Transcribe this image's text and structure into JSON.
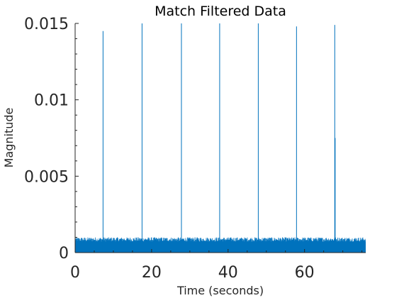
{
  "chart_data": {
    "type": "line",
    "title": "Match Filtered Data",
    "xlabel": "Time (seconds)",
    "ylabel": "Magnitude",
    "xlim": [
      0,
      76
    ],
    "ylim": [
      0,
      0.015
    ],
    "x_ticks": [
      0,
      20,
      40,
      60
    ],
    "x_tick_labels": [
      "0",
      "20",
      "40",
      "60"
    ],
    "y_ticks": [
      0,
      0.005,
      0.01,
      0.015
    ],
    "y_tick_labels": [
      "0",
      "0.005",
      "0.01",
      "0.015"
    ],
    "grid": false,
    "series": [
      {
        "name": "",
        "color": "#0072BD",
        "noise_floor": 0.001,
        "peaks": [
          {
            "x": 7.3,
            "y": 0.0145
          },
          {
            "x": 17.5,
            "y": 0.0152
          },
          {
            "x": 27.8,
            "y": 0.0152
          },
          {
            "x": 37.8,
            "y": 0.015
          },
          {
            "x": 47.9,
            "y": 0.015
          },
          {
            "x": 57.9,
            "y": 0.0148
          },
          {
            "x": 67.9,
            "y": 0.0149
          },
          {
            "x": 68.0,
            "y": 0.0075
          }
        ]
      }
    ]
  }
}
